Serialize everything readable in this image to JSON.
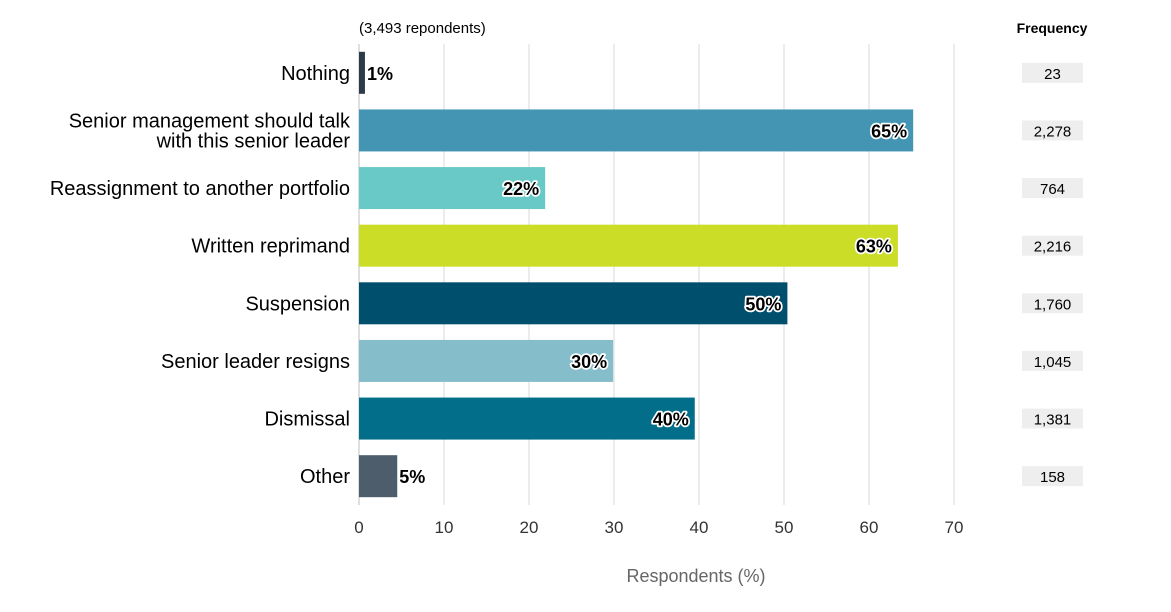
{
  "chart_data": {
    "type": "bar",
    "orientation": "horizontal",
    "subtitle": "(3,493 repondents)",
    "xlabel": "Respondents (%)",
    "ylabel": "",
    "xlim": [
      0,
      70
    ],
    "xticks": [
      0,
      10,
      20,
      30,
      40,
      50,
      60,
      70
    ],
    "grid": true,
    "frequency_header": "Frequency",
    "categories": [
      [
        "Nothing"
      ],
      [
        "Senior management should talk",
        "with this senior leader"
      ],
      [
        "Reassignment to another portfolio"
      ],
      [
        "Written reprimand"
      ],
      [
        "Suspension"
      ],
      [
        "Senior leader resigns"
      ],
      [
        "Dismissal"
      ],
      [
        "Other"
      ]
    ],
    "values": [
      0.7,
      65.2,
      21.9,
      63.4,
      50.4,
      29.9,
      39.5,
      4.5
    ],
    "value_labels": [
      "1%",
      "65%",
      "22%",
      "63%",
      "50%",
      "30%",
      "40%",
      "5%"
    ],
    "frequencies": [
      "23",
      "2,278",
      "764",
      "2,216",
      "1,760",
      "1,045",
      "1,381",
      "158"
    ],
    "colors": [
      "#2d3a48",
      "#4395b3",
      "#68c9c6",
      "#cbdd27",
      "#004f6d",
      "#85bdcb",
      "#026e8a",
      "#4e5d6c"
    ]
  }
}
